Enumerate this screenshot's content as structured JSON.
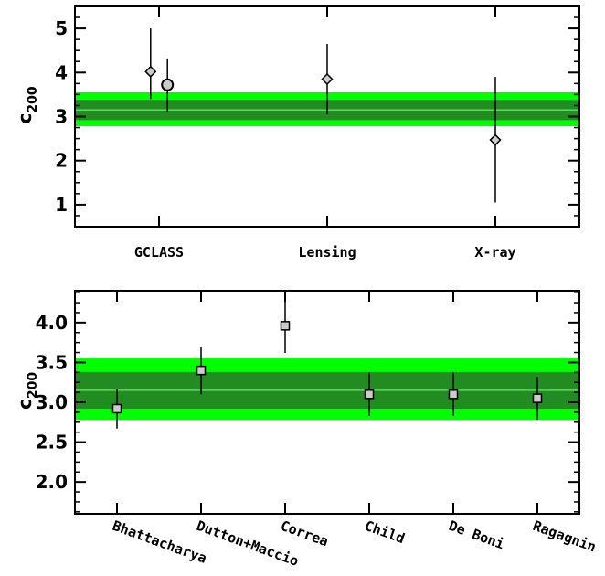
{
  "chart_data": [
    {
      "type": "scatter",
      "ylabel": "c",
      "ylabel_sub": "200",
      "ylim": [
        0.5,
        5.5
      ],
      "yticks": [
        1,
        2,
        3,
        4,
        5
      ],
      "ytick_labels": [
        "1",
        "2",
        "3",
        "4",
        "5"
      ],
      "xlim": [
        0,
        3
      ],
      "categories": [
        "GCLASS",
        "Lensing",
        "X-ray"
      ],
      "band": {
        "center": 3.15,
        "inner": [
          2.92,
          3.38
        ],
        "outer": [
          2.78,
          3.55
        ]
      },
      "points": [
        {
          "x": 0.45,
          "y": 4.02,
          "yerr_low": 3.4,
          "yerr_high": 5.0,
          "marker": "diamond"
        },
        {
          "x": 0.55,
          "y": 3.72,
          "yerr_low": 3.12,
          "yerr_high": 4.32,
          "marker": "circle"
        },
        {
          "x": 1.5,
          "y": 3.85,
          "yerr_low": 3.05,
          "yerr_high": 4.65,
          "marker": "diamond"
        },
        {
          "x": 2.5,
          "y": 2.47,
          "yerr_low": 1.05,
          "yerr_high": 3.9,
          "marker": "diamond"
        }
      ]
    },
    {
      "type": "scatter",
      "ylabel": "c",
      "ylabel_sub": "200",
      "ylim": [
        1.6,
        4.4
      ],
      "yticks": [
        2.0,
        2.5,
        3.0,
        3.5,
        4.0
      ],
      "ytick_labels": [
        "2.0",
        "2.5",
        "3.0",
        "3.5",
        "4.0"
      ],
      "xlim": [
        0,
        6
      ],
      "categories": [
        "Bhattacharya",
        "Dutton+Maccio",
        "Correa",
        "Child",
        "De Boni",
        "Ragagnin"
      ],
      "band": {
        "center": 3.15,
        "inner": [
          2.92,
          3.38
        ],
        "outer": [
          2.78,
          3.55
        ]
      },
      "points": [
        {
          "x": 0.5,
          "y": 2.92,
          "yerr_low": 2.67,
          "yerr_high": 3.17,
          "marker": "square"
        },
        {
          "x": 1.5,
          "y": 3.4,
          "yerr_low": 3.1,
          "yerr_high": 3.7,
          "marker": "square"
        },
        {
          "x": 2.5,
          "y": 3.96,
          "yerr_low": 3.62,
          "yerr_high": 4.3,
          "marker": "square"
        },
        {
          "x": 3.5,
          "y": 3.1,
          "yerr_low": 2.83,
          "yerr_high": 3.38,
          "marker": "square"
        },
        {
          "x": 4.5,
          "y": 3.1,
          "yerr_low": 2.83,
          "yerr_high": 3.38,
          "marker": "square"
        },
        {
          "x": 5.5,
          "y": 3.05,
          "yerr_low": 2.78,
          "yerr_high": 3.32,
          "marker": "square"
        }
      ]
    }
  ],
  "colors": {
    "band_outer": "#00ff00",
    "band_inner": "#228b22",
    "band_center": "#5bdc5b",
    "marker_fill": "#cccccc",
    "marker_stroke": "#000000"
  }
}
